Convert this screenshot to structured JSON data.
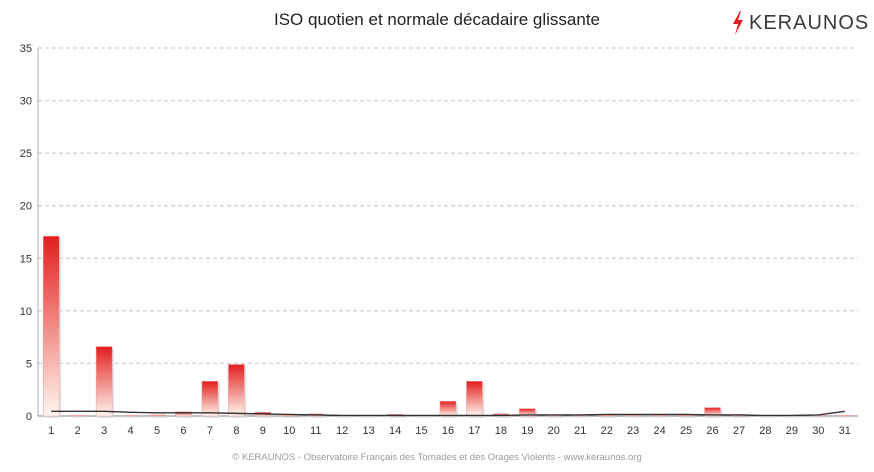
{
  "title": "ISO quotien et normale décadaire glissante",
  "brand": {
    "name": "KERAUNOS",
    "accent": "#e02020"
  },
  "footer": "© KERAUNOS - Observatoire Français des Tornades et des Orages Violents - www.keraunos.org",
  "chart_data": {
    "type": "bar",
    "title": "ISO quotien et normale décadaire glissante",
    "xlabel": "",
    "ylabel": "",
    "ylim": [
      0,
      35
    ],
    "yticks": [
      0,
      5,
      10,
      15,
      20,
      25,
      30,
      35
    ],
    "grid": true,
    "categories": [
      "1",
      "2",
      "3",
      "4",
      "5",
      "6",
      "7",
      "8",
      "9",
      "10",
      "11",
      "12",
      "13",
      "14",
      "15",
      "16",
      "17",
      "18",
      "19",
      "20",
      "21",
      "22",
      "23",
      "24",
      "25",
      "26",
      "27",
      "28",
      "29",
      "30",
      "31"
    ],
    "series": [
      {
        "kind": "bar",
        "color": "#e31e1e",
        "values": [
          17.1,
          0.05,
          6.6,
          0.05,
          0.1,
          0.4,
          3.3,
          4.9,
          0.35,
          0.15,
          0.2,
          0.05,
          0.05,
          0.15,
          0.05,
          1.4,
          3.3,
          0.2,
          0.7,
          0.1,
          0.05,
          0.1,
          0.05,
          0.05,
          0.1,
          0.8,
          0.15,
          0.05,
          0.05,
          0.05,
          0.05
        ]
      },
      {
        "kind": "line",
        "color": "#333333",
        "values": [
          0.45,
          0.45,
          0.45,
          0.35,
          0.3,
          0.3,
          0.3,
          0.25,
          0.2,
          0.15,
          0.1,
          0.05,
          0.05,
          0.05,
          0.05,
          0.05,
          0.05,
          0.05,
          0.1,
          0.1,
          0.1,
          0.15,
          0.15,
          0.15,
          0.15,
          0.1,
          0.1,
          0.05,
          0.05,
          0.1,
          0.45
        ]
      }
    ]
  }
}
